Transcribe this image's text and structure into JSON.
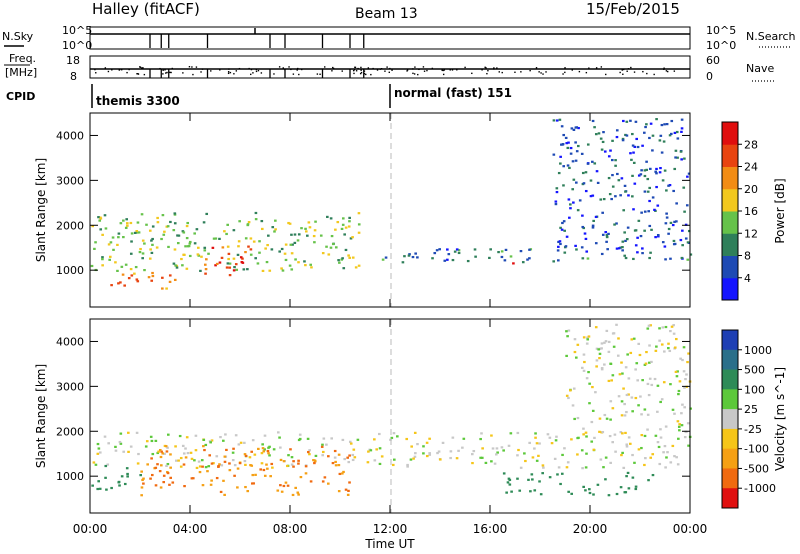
{
  "header": {
    "station": "Halley (fitACF)",
    "beam": "Beam 13",
    "date": "15/Feb/2015"
  },
  "summary_panels": {
    "nsky": {
      "left_label": "N.Sky",
      "right_label": "N.Search",
      "left_ticks": [
        "10^5",
        "10^0"
      ],
      "right_ticks": [
        "10^5",
        "10^0"
      ]
    },
    "freq": {
      "left_label_line1": "Freq.",
      "left_label_line2": "[MHz]",
      "right_label": "Nave",
      "left_ticks": [
        "18",
        "8"
      ],
      "right_ticks": [
        "60",
        "0"
      ]
    },
    "cpid": {
      "label": "CPID",
      "modes": [
        {
          "name": "themis 3300",
          "start_hour": 0
        },
        {
          "name": "normal (fast) 151",
          "start_hour": 12
        }
      ]
    }
  },
  "chart_data": [
    {
      "type": "heatmap",
      "title": "Power",
      "ylabel": "Slant Range [km]",
      "xlabel": "",
      "xlim": [
        0,
        24
      ],
      "ylim": [
        180,
        4500
      ],
      "yticks": [
        1000,
        2000,
        3000,
        4000
      ],
      "colorbar": {
        "label": "Power [dB]",
        "ticks": [
          4,
          8,
          12,
          16,
          20,
          24,
          28
        ],
        "range": [
          0,
          32
        ],
        "colors": [
          "#1414ff",
          "#1e4ab4",
          "#2f7f5a",
          "#66c24a",
          "#f2c81e",
          "#f28c14",
          "#e84410",
          "#e00e0e"
        ]
      },
      "echo_regions": [
        {
          "name": "low range strong echoes",
          "t_start": 0.5,
          "t_end": 3.5,
          "r_min": 600,
          "r_max": 1000,
          "level": 24
        },
        {
          "name": "main band morning",
          "t_start": 0,
          "t_end": 10.8,
          "r_min": 1000,
          "r_max": 2300,
          "level": 14
        },
        {
          "name": "morning intense patch",
          "t_start": 4.5,
          "t_end": 6.5,
          "r_min": 900,
          "r_max": 1600,
          "level": 26
        },
        {
          "name": "afternoon band",
          "t_start": 11.5,
          "t_end": 24,
          "r_min": 1200,
          "r_max": 1500,
          "level": 8
        },
        {
          "name": "red patch",
          "t_start": 16.8,
          "t_end": 17.3,
          "r_min": 1150,
          "r_max": 1250,
          "level": 28
        },
        {
          "name": "evening scatter",
          "t_start": 18.5,
          "t_end": 24,
          "r_min": 1500,
          "r_max": 4400,
          "level": 6
        }
      ]
    },
    {
      "type": "heatmap",
      "title": "Velocity",
      "ylabel": "Slant Range [km]",
      "xlabel": "Time UT",
      "xlim": [
        0,
        24
      ],
      "ylim": [
        180,
        4500
      ],
      "xticks": [
        "00:00",
        "04:00",
        "08:00",
        "12:00",
        "16:00",
        "20:00",
        "00:00"
      ],
      "yticks": [
        1000,
        2000,
        3000,
        4000
      ],
      "colorbar": {
        "label": "Velocity [m s^-1]",
        "ticks": [
          1000,
          500,
          100,
          25,
          -25,
          -100,
          -500,
          -1000
        ],
        "colors": [
          "#1e3fb4",
          "#2a6f8a",
          "#2e8b57",
          "#5cc83a",
          "#c8c8c8",
          "#f5c518",
          "#f5a014",
          "#f06a10",
          "#e01010"
        ]
      },
      "echo_regions": [
        {
          "name": "ground scatter band",
          "t_start": 0,
          "t_end": 24,
          "r_min": 1200,
          "r_max": 2000,
          "velocity": 0
        },
        {
          "name": "morning negative velocities",
          "t_start": 2,
          "t_end": 10.5,
          "r_min": 600,
          "r_max": 1700,
          "velocity": -300
        },
        {
          "name": "early positive velocities",
          "t_start": 0,
          "t_end": 2,
          "r_min": 700,
          "r_max": 1300,
          "velocity": 150
        },
        {
          "name": "afternoon green patches",
          "t_start": 16.5,
          "t_end": 22.5,
          "r_min": 600,
          "r_max": 1100,
          "velocity": 150
        },
        {
          "name": "evening scatter",
          "t_start": 19,
          "t_end": 24,
          "r_min": 1800,
          "r_max": 4400,
          "velocity": 0
        }
      ]
    }
  ]
}
